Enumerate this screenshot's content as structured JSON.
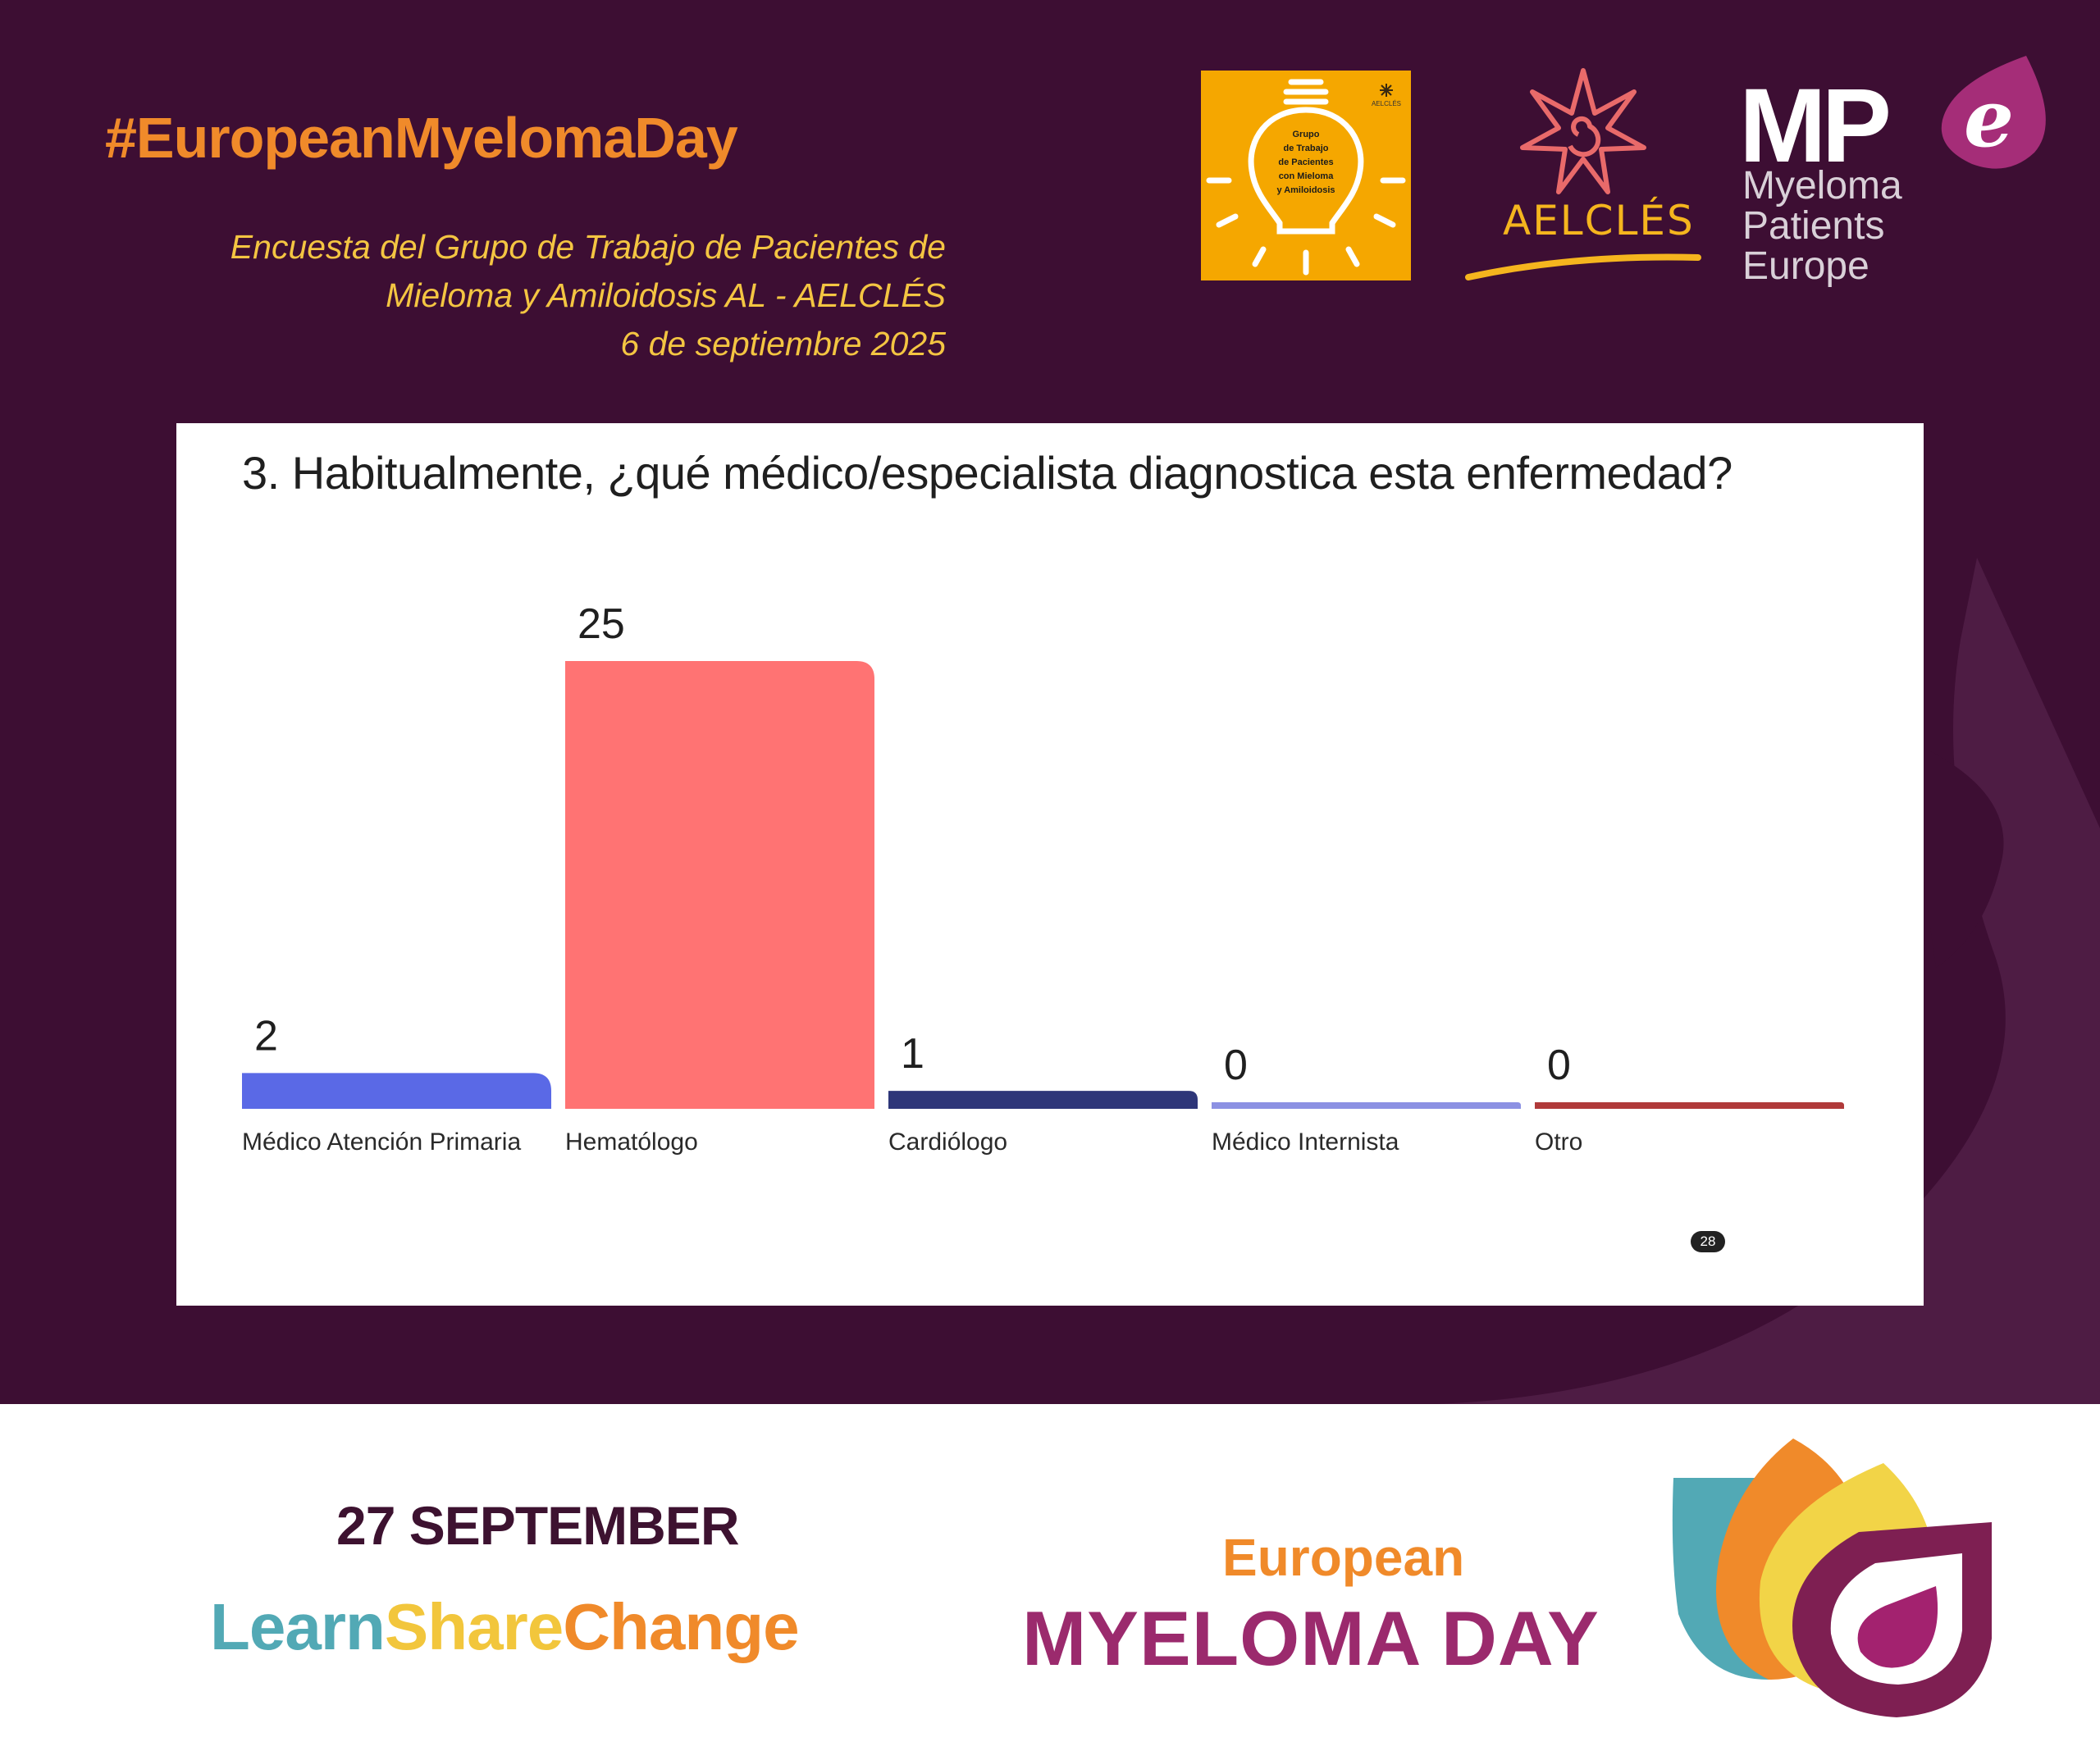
{
  "header": {
    "hashtag": "#EuropeanMyelomaDay",
    "subtitle_line1": "Encuesta del Grupo de Trabajo de Pacientes de",
    "subtitle_line2": "Mieloma y Amiloidosis AL - AELCLÉS",
    "subtitle_line3": "6 de septiembre 2025"
  },
  "logos": {
    "bulb_logo_lines": [
      "Grupo",
      "de Trabajo",
      "de Pacientes",
      "con Mieloma",
      "y Amiloidosis"
    ],
    "bulb_logo_mini": "AELCLÉS",
    "aelcles": "AELCLÉS",
    "mpe_mark": "MP",
    "mpe_letter": "e",
    "mpe_line1": "Myeloma",
    "mpe_line2": "Patients",
    "mpe_line3": "Europe"
  },
  "poll": {
    "question": "3. Habitualmente, ¿qué médico/especialista diagnostica esta enfermedad?",
    "participants": "28",
    "like_icon": "thumbs-up-icon",
    "participants_icon": "person-icon"
  },
  "chart_data": {
    "type": "bar",
    "title": "3. Habitualmente, ¿qué médico/especialista diagnostica esta enfermedad?",
    "xlabel": "",
    "ylabel": "",
    "categories": [
      "Médico Atención Primaria",
      "Hematólogo",
      "Cardiólogo",
      "Médico Internista",
      "Otro"
    ],
    "values": [
      2,
      25,
      1,
      0,
      0
    ],
    "colors": [
      "#5a69e6",
      "#ff7373",
      "#2e3679",
      "#8c91e3",
      "#b03a3a"
    ],
    "ylim": [
      0,
      25
    ],
    "grid": false,
    "legend": "none"
  },
  "footer": {
    "date": "27 SEPTEMBER",
    "learn": "Learn",
    "share": "Share",
    "change": "Change",
    "european": "European",
    "myeloma_day": "MYELOMA DAY"
  },
  "colors": {
    "background": "#3d0e33",
    "hashtag": "#f08a2a",
    "subtitle": "#f4c542",
    "brand_purple": "#9b2a6d"
  }
}
